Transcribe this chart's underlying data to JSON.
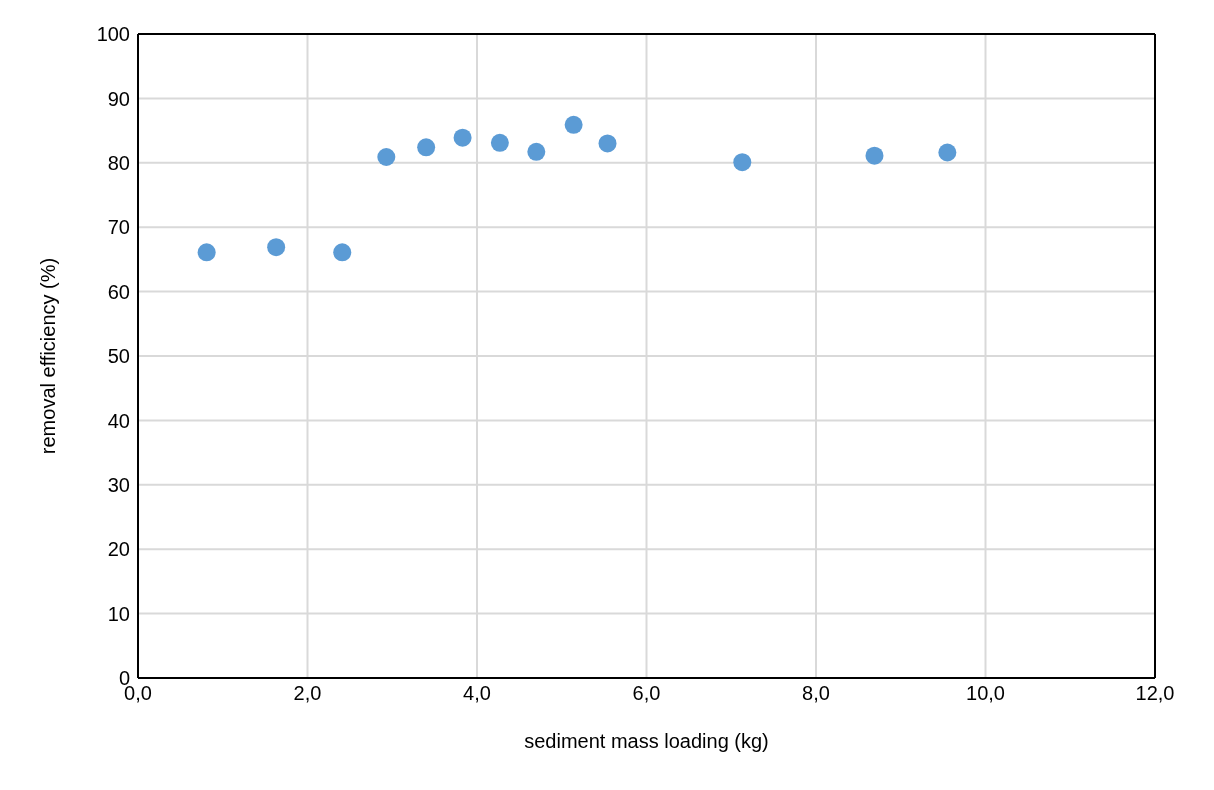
{
  "chart_data": {
    "type": "scatter",
    "xlabel": "sediment mass loading (kg)",
    "ylabel": "removal efficiency (%)",
    "x": [
      0.81,
      1.63,
      2.41,
      2.93,
      3.4,
      3.83,
      4.27,
      4.7,
      5.14,
      5.54,
      7.13,
      8.69,
      9.55
    ],
    "values": [
      66.1,
      66.9,
      66.1,
      80.9,
      82.4,
      83.9,
      83.1,
      81.7,
      85.9,
      83.0,
      80.1,
      81.1,
      81.6
    ],
    "color": "#5b9bd5",
    "marker": "circle",
    "grid": true,
    "legend": false,
    "xlim": [
      0,
      12
    ],
    "xticks": [
      {
        "value": 0,
        "label": "0,0"
      },
      {
        "value": 2,
        "label": "2,0"
      },
      {
        "value": 4,
        "label": "4,0"
      },
      {
        "value": 6,
        "label": "6,0"
      },
      {
        "value": 8,
        "label": "8,0"
      },
      {
        "value": 10,
        "label": "10,0"
      },
      {
        "value": 12,
        "label": "12,0"
      }
    ],
    "ylim": [
      0,
      100
    ],
    "yticks": [
      0,
      10,
      20,
      30,
      40,
      50,
      60,
      70,
      80,
      90,
      100
    ]
  }
}
